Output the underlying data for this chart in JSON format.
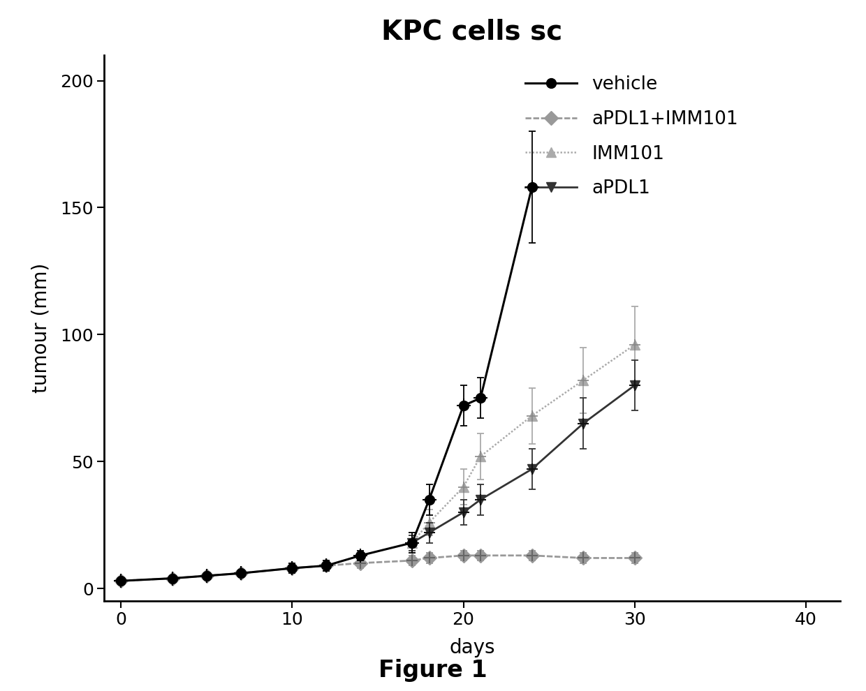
{
  "title": "KPC cells sc",
  "xlabel": "days",
  "ylabel": "tumour (mm)",
  "figure_label": "Figure 1",
  "xlim": [
    -1,
    42
  ],
  "ylim": [
    -5,
    210
  ],
  "xticks": [
    0,
    10,
    20,
    30,
    40
  ],
  "yticks": [
    0,
    50,
    100,
    150,
    200
  ],
  "vehicle": {
    "x": [
      0,
      3,
      5,
      7,
      10,
      12,
      14,
      17,
      18,
      20,
      21,
      24
    ],
    "y": [
      3,
      4,
      5,
      6,
      8,
      9,
      13,
      18,
      35,
      72,
      75,
      158
    ],
    "yerr": [
      1,
      1,
      1,
      1,
      2,
      2,
      2,
      4,
      6,
      8,
      8,
      22
    ],
    "color": "#000000",
    "label": "vehicle",
    "ms": 10,
    "lw": 2.2
  },
  "apdl1_imm101": {
    "x": [
      0,
      3,
      5,
      7,
      10,
      12,
      14,
      17,
      18,
      20,
      21,
      24,
      27,
      30
    ],
    "y": [
      3,
      4,
      5,
      6,
      8,
      9,
      10,
      11,
      12,
      13,
      13,
      13,
      12,
      12
    ],
    "yerr": [
      1,
      1,
      1,
      1,
      2,
      2,
      2,
      2,
      2,
      2,
      2,
      2,
      2,
      2
    ],
    "color": "#888888",
    "label": "aPDL1+IMM101",
    "ms": 10,
    "lw": 2.0
  },
  "imm101": {
    "x": [
      17,
      18,
      20,
      21,
      24,
      27,
      30
    ],
    "y": [
      18,
      26,
      40,
      52,
      68,
      82,
      96
    ],
    "yerr": [
      4,
      5,
      7,
      9,
      11,
      13,
      15
    ],
    "color": "#aaaaaa",
    "label": "IMM101",
    "ms": 10,
    "lw": 1.8
  },
  "apdl1": {
    "x": [
      17,
      18,
      20,
      21,
      24,
      27,
      30
    ],
    "y": [
      18,
      22,
      30,
      35,
      47,
      65,
      80
    ],
    "yerr": [
      3,
      4,
      5,
      6,
      8,
      10,
      10
    ],
    "color": "#333333",
    "label": "aPDL1",
    "ms": 10,
    "lw": 2.0
  },
  "bg_color": "#ffffff",
  "title_fontsize": 28,
  "label_fontsize": 20,
  "tick_fontsize": 18,
  "legend_fontsize": 19,
  "caption_fontsize": 24
}
